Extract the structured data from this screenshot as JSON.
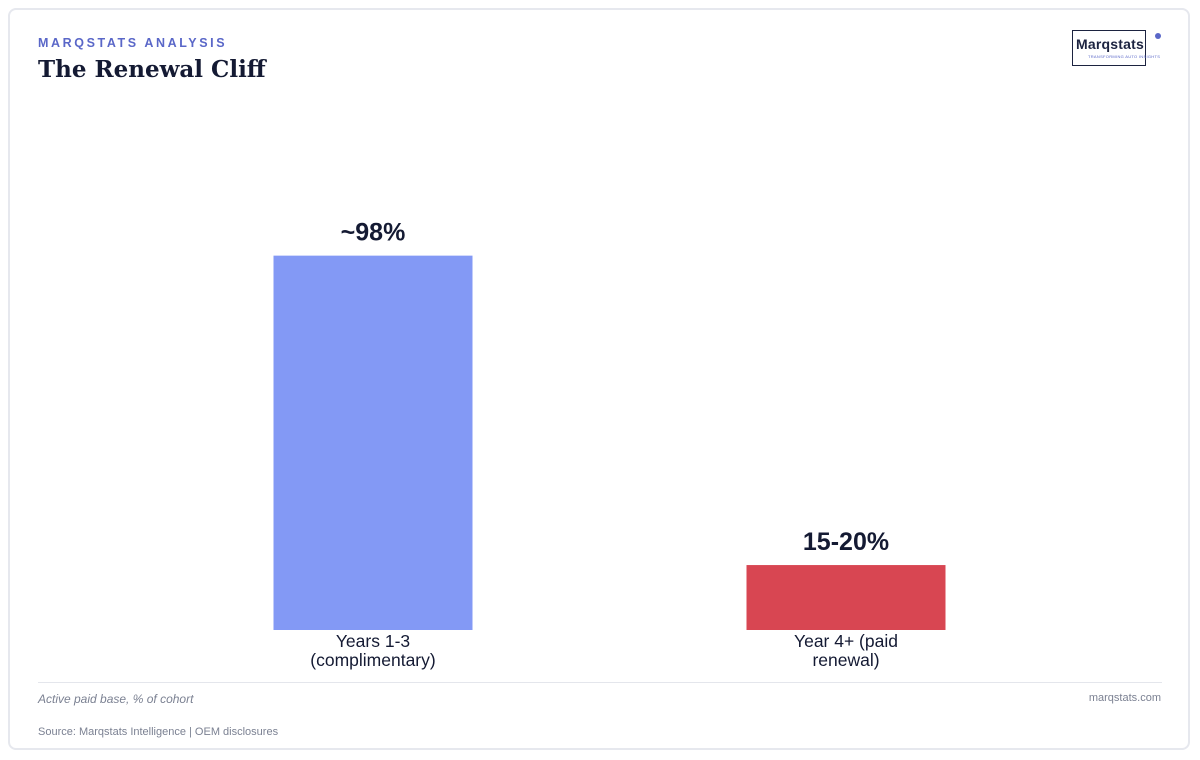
{
  "header": {
    "eyebrow": "MARQSTATS ANALYSIS",
    "title": "The Renewal Cliff"
  },
  "logo": {
    "wordmark": "Marqstats",
    "tagline": "TRANSFORMING AUTO INSIGHTS"
  },
  "footer": {
    "caption": "Active paid base, % of cohort",
    "site": "marqstats.com",
    "source": "Source: Marqstats Intelligence | OEM disclosures"
  },
  "chart_data": {
    "type": "bar",
    "categories": [
      "Years 1-3 (complimentary)",
      "Year 4+ (paid renewal)"
    ],
    "category_lines": [
      [
        "Years 1-3",
        "(complimentary)"
      ],
      [
        "Year 4+ (paid",
        "renewal)"
      ]
    ],
    "values": [
      98,
      17
    ],
    "value_labels": [
      "~98%",
      "15-20%"
    ],
    "colors": [
      "#8399f5",
      "#d84652"
    ],
    "ylim": [
      0,
      100
    ],
    "grid": false,
    "legend": "none",
    "title": "",
    "xlabel": "",
    "ylabel": ""
  }
}
